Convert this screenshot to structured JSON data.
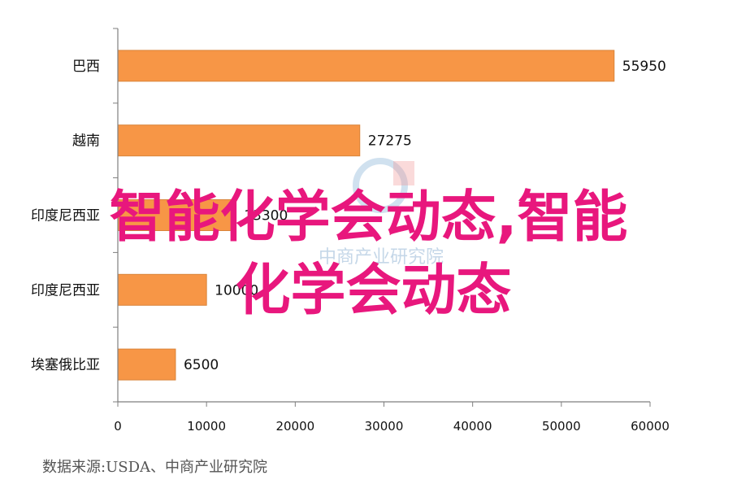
{
  "chart_data": {
    "type": "bar",
    "orientation": "horizontal",
    "categories": [
      "巴西",
      "越南",
      "印度尼西亚",
      "印度尼西亚",
      "埃塞俄比亚"
    ],
    "values": [
      55950,
      27275,
      13300,
      10000,
      6500
    ],
    "value_labels": [
      "55950",
      "27275",
      "13300",
      "10000",
      "6500"
    ],
    "xlim": [
      0,
      60000
    ],
    "x_ticks": [
      "0",
      "10000",
      "20000",
      "30000",
      "40000",
      "50000",
      "60000"
    ],
    "grid": false,
    "bar_color": "#f79646",
    "bar_stroke": "#d9843a"
  },
  "source_note": "数据来源:USDA、中商产业研究院",
  "overlay_text": {
    "line1": "智能化学会动态,智能",
    "line2": "化学会动态"
  },
  "watermark_text": "中商产业研究院",
  "colors": {
    "overlay": "#e8177d",
    "axis": "#7f7f7f",
    "bar": "#f79646"
  }
}
